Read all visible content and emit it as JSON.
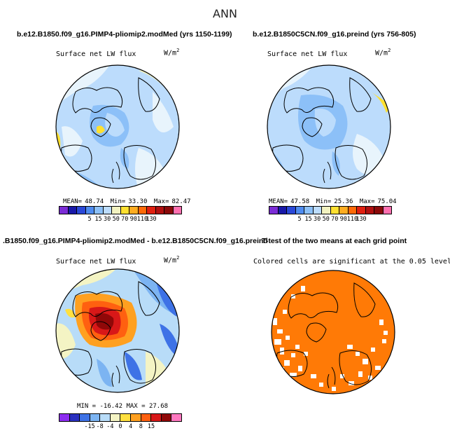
{
  "main_title": "ANN",
  "panels": [
    {
      "title": "b.e12.B1850.f09_g16.PIMP4-pliomip2.modMed (yrs 1150-1199)",
      "variable": "Surface net LW flux",
      "units": "W/m",
      "units_exp": "2",
      "stats": {
        "mean_label": "MEAN=",
        "mean": "48.74",
        "min_label": "Min=",
        "min": "33.30",
        "max_label": "Max=",
        "max": "82.47"
      },
      "colorbar_ticks": [
        "5",
        "15",
        "30",
        "50",
        "70",
        "90",
        "110",
        "130"
      ]
    },
    {
      "title": "b.e12.B1850C5CN.f09_g16.preind (yrs 756-805)",
      "variable": "Surface net LW flux",
      "units": "W/m",
      "units_exp": "2",
      "stats": {
        "mean_label": "MEAN=",
        "mean": "47.58",
        "min_label": "Min=",
        "min": "25.36",
        "max_label": "Max=",
        "max": "75.04"
      },
      "colorbar_ticks": [
        "5",
        "15",
        "30",
        "50",
        "70",
        "90",
        "110",
        "130"
      ]
    },
    {
      "title": ".B1850.f09_g16.PIMP4-pliomip2.modMed - b.e12.B1850C5CN.f09_g16.preind",
      "variable": "Surface net LW flux",
      "units": "W/m",
      "units_exp": "2",
      "stats_text": "MIN = -16.42  MAX =  27.68",
      "colorbar_ticks": [
        "-15",
        "-8",
        "-4",
        "0",
        "4",
        "8",
        "15"
      ]
    },
    {
      "title": "T-test of the two means at each grid point",
      "variable": "Colored cells are significant at the 0.05 level"
    }
  ],
  "colors": {
    "abs_scale": [
      "#7b2cd6",
      "#1818a8",
      "#2a48d8",
      "#4f8cf0",
      "#8cc0f8",
      "#bcdcfc",
      "#f2f2c0",
      "#ffe030",
      "#ffac20",
      "#ff6a08",
      "#e02010",
      "#b01010",
      "#8a0a0a",
      "#ff70b0"
    ],
    "diff_scale": [
      "#8c2cf0",
      "#2a30c0",
      "#3e72e6",
      "#7cb4f2",
      "#b8dcf8",
      "#f4f4c4",
      "#ffe040",
      "#ffa020",
      "#ff6010",
      "#d81818",
      "#900808",
      "#ff78c0"
    ],
    "significant": "#ff7a06",
    "land_outline": "#000000"
  }
}
